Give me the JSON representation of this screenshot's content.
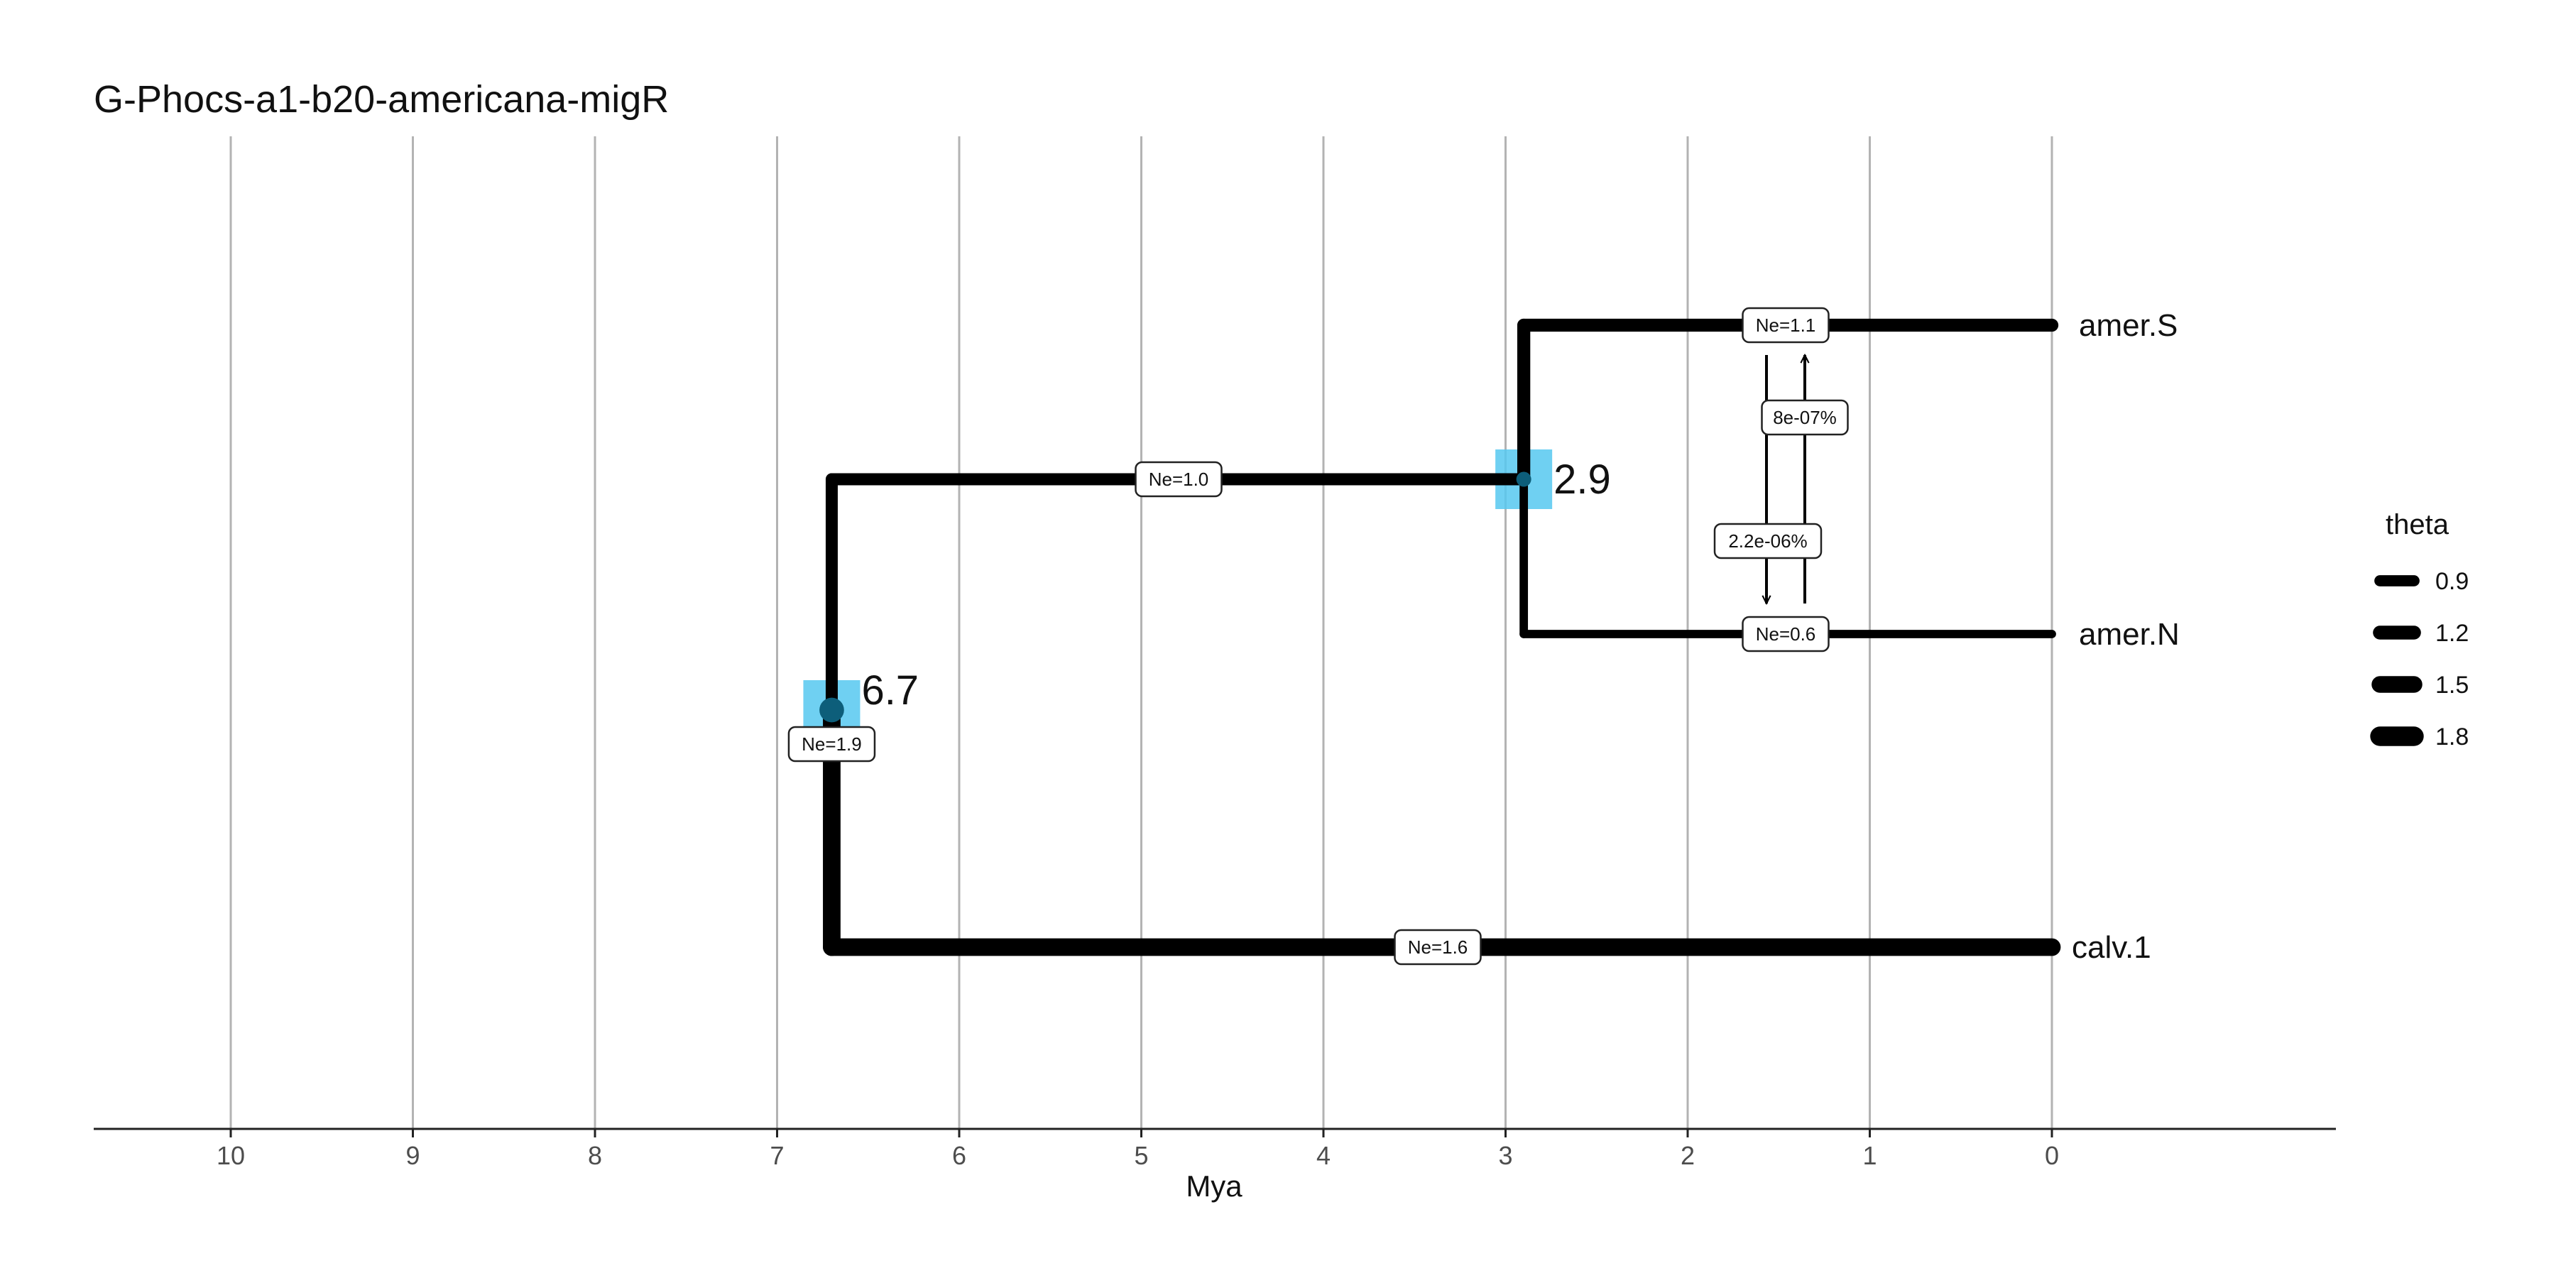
{
  "title": "G-Phocs-a1-b20-americana-migR",
  "chart_data": {
    "type": "phylogeny",
    "xlabel": "Mya",
    "x_ticks": [
      "10",
      "9",
      "8",
      "7",
      "6",
      "5",
      "4",
      "3",
      "2",
      "1",
      "0"
    ],
    "xlim": [
      10.8,
      -1.5
    ],
    "taxa": [
      {
        "name": "amer.S",
        "ne_label": "Ne=1.1",
        "theta": 1.1
      },
      {
        "name": "amer.N",
        "ne_label": "Ne=0.6",
        "theta": 0.6
      },
      {
        "name": "calv.1",
        "ne_label": "Ne=1.6",
        "theta": 1.6
      }
    ],
    "nodes": [
      {
        "name": "amer",
        "age": 2.9,
        "age_label": "2.9",
        "ne_label": "Ne=1.0",
        "theta": 1.0,
        "children": [
          "amer.S",
          "amer.N"
        ]
      },
      {
        "name": "root",
        "age": 6.7,
        "age_label": "6.7",
        "ne_label": "Ne=1.9",
        "theta": 1.9,
        "children": [
          "amer",
          "calv.1"
        ]
      }
    ],
    "migrations": [
      {
        "from": "amer.S",
        "to": "amer.N",
        "label": "2.2e-06%"
      },
      {
        "from": "amer.N",
        "to": "amer.S",
        "label": "8e-07%"
      }
    ],
    "legend": {
      "title": "theta",
      "placement": "right",
      "items": [
        {
          "label": "0.9",
          "value": 0.9
        },
        {
          "label": "1.2",
          "value": 1.2
        },
        {
          "label": "1.5",
          "value": 1.5
        },
        {
          "label": "1.8",
          "value": 1.8
        }
      ]
    },
    "colors": {
      "branch": "#000000",
      "node_ci": "#56c8f0",
      "node_point": "#0d5e7a",
      "grid": "#b3b3b3"
    }
  }
}
